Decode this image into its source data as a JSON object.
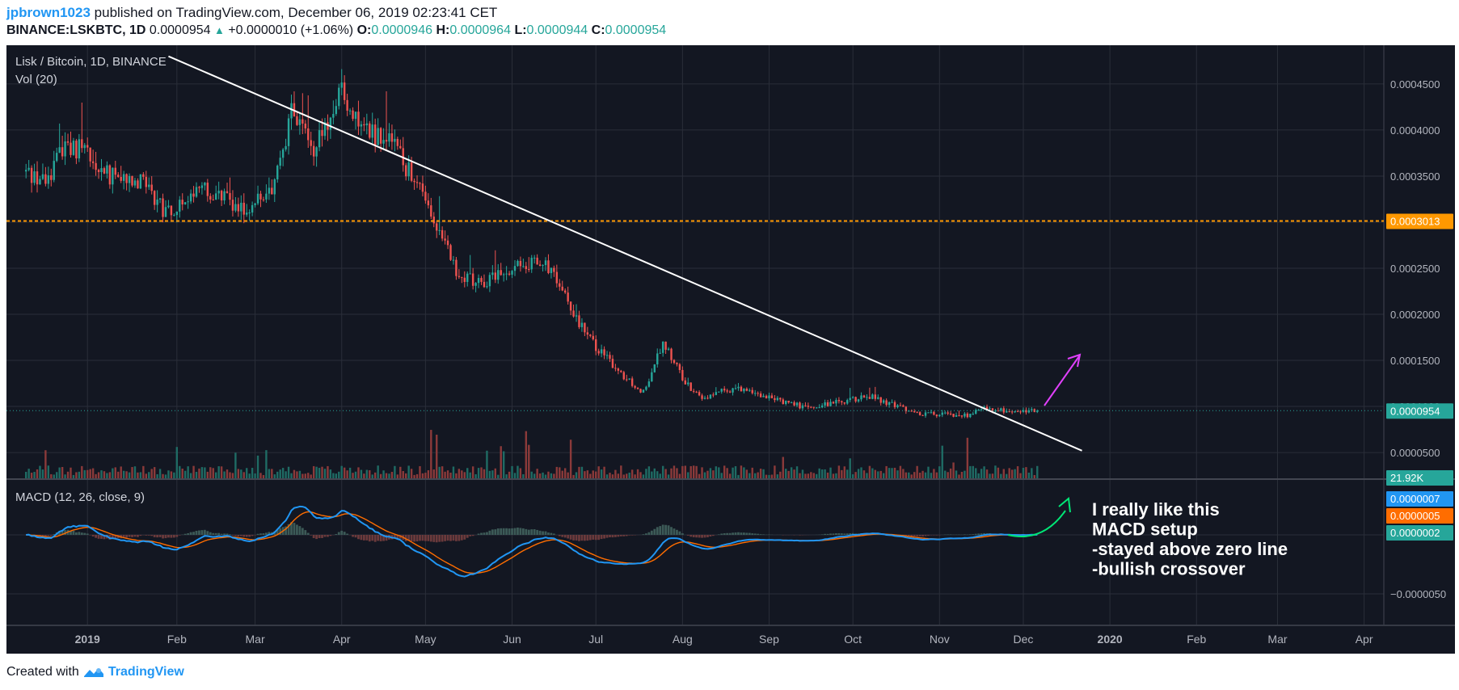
{
  "header": {
    "author": "jpbrown1023",
    "published_text": "published on TradingView.com, December 06, 2019 02:23:41 CET",
    "symbol": "BINANCE:LSKBTC, 1D",
    "last": "0.0000954",
    "change_arrow": "▲",
    "change": "+0.0000010 (+1.06%)",
    "o_label": "O:",
    "o": "0.0000946",
    "h_label": "H:",
    "h": "0.0000964",
    "l_label": "L:",
    "l": "0.0000944",
    "c_label": "C:",
    "c": "0.0000954"
  },
  "footer": {
    "created_with": "Created with",
    "brand": "TradingView"
  },
  "colors": {
    "background": "#131722",
    "grid": "#2a2e39",
    "up": "#26a69a",
    "down": "#ef5350",
    "vol_up": "#1f6b64",
    "vol_down": "#8b3a3a",
    "macd": "#2196f3",
    "signal": "#ff6d00",
    "hist_up": "#3c5a57",
    "hist_down": "#6b3a3c",
    "resistance": "#ff9800",
    "trendline": "#ffffff",
    "arrow_up": "#e040fb",
    "arrow_macd": "#00e676"
  },
  "chart_data": {
    "type": "candlestick",
    "title": "Lisk / Bitcoin, 1D, BINANCE",
    "volume_label": "Vol (20)",
    "macd_label": "MACD (12, 26, close, 9)",
    "x_ticks": [
      "2019",
      "Feb",
      "Mar",
      "Apr",
      "May",
      "Jun",
      "Jul",
      "Aug",
      "Sep",
      "Oct",
      "Nov",
      "Dec",
      "2020",
      "Feb",
      "Mar",
      "Apr"
    ],
    "y_ticks": [
      "0.0000500",
      "0.0001000",
      "0.0001500",
      "0.0002000",
      "0.0002500",
      "0.0003000",
      "0.0003500",
      "0.0004000",
      "0.0004500"
    ],
    "y_tick_values": [
      5e-05,
      0.0001,
      0.00015,
      0.0002,
      0.00025,
      0.0003,
      0.00035,
      0.0004,
      0.00045
    ],
    "ylim": [
      2.2e-05,
      0.000492
    ],
    "start_date": "2018-12-09",
    "end_date": "2019-12-06",
    "anchors": [
      [
        "2018-12-09",
        0.000355
      ],
      [
        "2018-12-16",
        0.000345
      ],
      [
        "2018-12-23",
        0.000385
      ],
      [
        "2018-12-31",
        0.000375
      ],
      [
        "2019-01-08",
        0.00035
      ],
      [
        "2019-01-20",
        0.000345
      ],
      [
        "2019-01-28",
        0.00031
      ],
      [
        "2019-02-10",
        0.000335
      ],
      [
        "2019-02-25",
        0.000315
      ],
      [
        "2019-03-08",
        0.00034
      ],
      [
        "2019-03-14",
        0.00042
      ],
      [
        "2019-03-22",
        0.00038
      ],
      [
        "2019-04-01",
        0.00044
      ],
      [
        "2019-04-08",
        0.0004
      ],
      [
        "2019-04-18",
        0.00039
      ],
      [
        "2019-04-28",
        0.00034
      ],
      [
        "2019-05-08",
        0.00028
      ],
      [
        "2019-05-13",
        0.00024
      ],
      [
        "2019-05-22",
        0.000235
      ],
      [
        "2019-06-05",
        0.000255
      ],
      [
        "2019-06-12",
        0.00026
      ],
      [
        "2019-06-18",
        0.00023
      ],
      [
        "2019-06-28",
        0.000175
      ],
      [
        "2019-07-04",
        0.000155
      ],
      [
        "2019-07-12",
        0.00013
      ],
      [
        "2019-07-18",
        0.000115
      ],
      [
        "2019-07-25",
        0.00017
      ],
      [
        "2019-08-02",
        0.000125
      ],
      [
        "2019-08-08",
        0.00011
      ],
      [
        "2019-08-20",
        0.00012
      ],
      [
        "2019-09-01",
        0.00011
      ],
      [
        "2019-09-15",
        9.8e-05
      ],
      [
        "2019-10-01",
        0.000108
      ],
      [
        "2019-10-08",
        0.00011
      ],
      [
        "2019-10-25",
        9.2e-05
      ],
      [
        "2019-11-10",
        9e-05
      ],
      [
        "2019-11-18",
        9.8e-05
      ],
      [
        "2019-11-28",
        9.5e-05
      ],
      [
        "2019-12-06",
        9.54e-05
      ]
    ],
    "annotations": {
      "resistance_value": 0.0003013,
      "resistance_label": "0.0003013",
      "last_price_value": 9.54e-05,
      "last_price_label": "0.0000954",
      "volume_label_value": "21.92K",
      "macd_value": "0.0000007",
      "signal_value": "0.0000005",
      "hist_value": "0.0000002",
      "macd_tick": "−0.0000050",
      "trendline": [
        [
          "2019-01-29",
          0.00048
        ],
        [
          "2019-12-22",
          5.2e-05
        ]
      ],
      "note_lines": [
        "I really like this",
        "MACD setup",
        "-stayed above zero line",
        "-bullish crossover"
      ]
    }
  }
}
